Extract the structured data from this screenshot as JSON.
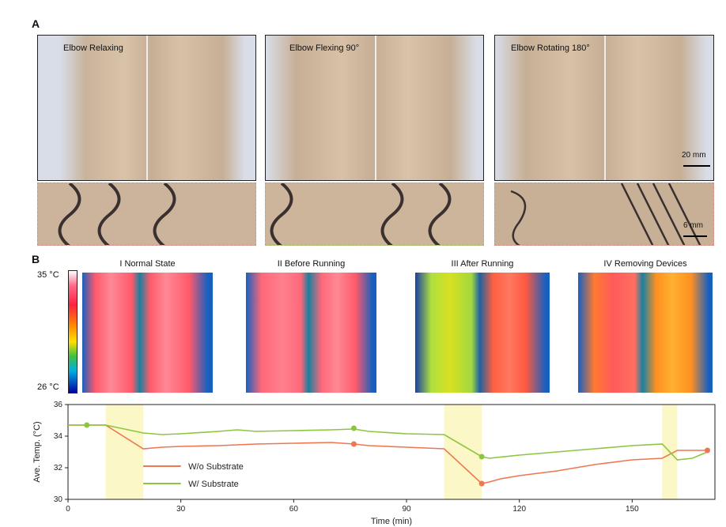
{
  "panel_a": {
    "letter": "A",
    "photos": [
      {
        "label": "Elbow Relaxing"
      },
      {
        "label": "Elbow Flexing 90°"
      },
      {
        "label": "Elbow Rotating 180°"
      }
    ],
    "scale_large": "20 mm",
    "scale_small": "6 mm"
  },
  "panel_b": {
    "letter": "B",
    "thermal_titles": [
      "I Normal State",
      "II Before Running",
      "III After Running",
      "IV Removing Devices"
    ],
    "colorbar_max": "35 °C",
    "colorbar_min": "26 °C"
  },
  "chart_data": {
    "type": "line",
    "xlabel": "Time (min)",
    "ylabel": "Ave. Temp. (°C)",
    "xlim": [
      0,
      172
    ],
    "ylim": [
      30,
      36
    ],
    "xticks": [
      0,
      30,
      60,
      90,
      120,
      150
    ],
    "yticks": [
      30,
      32,
      34,
      36
    ],
    "highlight_regions": [
      [
        10,
        20
      ],
      [
        100,
        110
      ],
      [
        158,
        162
      ]
    ],
    "series": [
      {
        "name": "W/o Substrate",
        "color": "#ee7753",
        "points": [
          [
            0,
            34.7
          ],
          [
            10,
            34.7
          ],
          [
            20,
            33.2
          ],
          [
            25,
            33.3
          ],
          [
            30,
            33.35
          ],
          [
            40,
            33.4
          ],
          [
            50,
            33.5
          ],
          [
            60,
            33.55
          ],
          [
            70,
            33.6
          ],
          [
            76,
            33.5
          ],
          [
            80,
            33.4
          ],
          [
            90,
            33.3
          ],
          [
            100,
            33.2
          ],
          [
            110,
            31.0
          ],
          [
            112,
            31.1
          ],
          [
            115,
            31.3
          ],
          [
            120,
            31.5
          ],
          [
            130,
            31.8
          ],
          [
            140,
            32.2
          ],
          [
            150,
            32.5
          ],
          [
            158,
            32.6
          ],
          [
            162,
            33.1
          ],
          [
            166,
            33.1
          ],
          [
            170,
            33.1
          ]
        ],
        "markers": [
          [
            76,
            33.5
          ],
          [
            110,
            31.0
          ],
          [
            170,
            33.1
          ]
        ]
      },
      {
        "name": "W/ Substrate",
        "color": "#8cc63f",
        "points": [
          [
            0,
            34.7
          ],
          [
            5,
            34.7
          ],
          [
            10,
            34.7
          ],
          [
            20,
            34.2
          ],
          [
            25,
            34.1
          ],
          [
            30,
            34.15
          ],
          [
            40,
            34.3
          ],
          [
            45,
            34.4
          ],
          [
            50,
            34.3
          ],
          [
            60,
            34.35
          ],
          [
            70,
            34.4
          ],
          [
            76,
            34.45
          ],
          [
            80,
            34.3
          ],
          [
            90,
            34.15
          ],
          [
            100,
            34.1
          ],
          [
            110,
            32.7
          ],
          [
            112,
            32.6
          ],
          [
            120,
            32.8
          ],
          [
            130,
            33.0
          ],
          [
            140,
            33.2
          ],
          [
            150,
            33.4
          ],
          [
            158,
            33.5
          ],
          [
            162,
            32.5
          ],
          [
            166,
            32.6
          ],
          [
            170,
            33.0
          ]
        ],
        "markers": [
          [
            5,
            34.7
          ],
          [
            76,
            34.5
          ],
          [
            110,
            32.7
          ]
        ]
      }
    ]
  }
}
